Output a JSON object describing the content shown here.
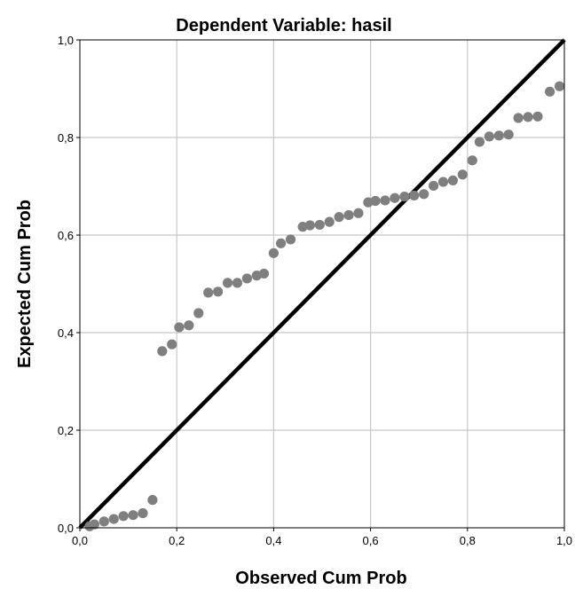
{
  "chart_data": {
    "type": "scatter",
    "title": "Dependent Variable: hasil",
    "xlabel": "Observed Cum Prob",
    "ylabel": "Expected Cum Prob",
    "xlim": [
      0,
      1
    ],
    "ylim": [
      0,
      1
    ],
    "x_ticks": [
      "0,0",
      "0,2",
      "0,4",
      "0,6",
      "0,8",
      "1,0"
    ],
    "y_ticks": [
      "0,0",
      "0,2",
      "0,4",
      "0,6",
      "0,8",
      "1,0"
    ],
    "grid": true,
    "reference_line": [
      [
        0,
        0
      ],
      [
        1,
        1
      ]
    ],
    "colors": {
      "points": "#7f7f7f",
      "line": "#000000",
      "grid": "#c8c8c8"
    },
    "points": [
      [
        0.02,
        0.003
      ],
      [
        0.03,
        0.007
      ],
      [
        0.05,
        0.013
      ],
      [
        0.07,
        0.018
      ],
      [
        0.09,
        0.024
      ],
      [
        0.11,
        0.026
      ],
      [
        0.13,
        0.03
      ],
      [
        0.15,
        0.057
      ],
      [
        0.17,
        0.362
      ],
      [
        0.19,
        0.376
      ],
      [
        0.205,
        0.411
      ],
      [
        0.225,
        0.415
      ],
      [
        0.245,
        0.44
      ],
      [
        0.265,
        0.482
      ],
      [
        0.285,
        0.484
      ],
      [
        0.305,
        0.502
      ],
      [
        0.325,
        0.502
      ],
      [
        0.345,
        0.511
      ],
      [
        0.365,
        0.517
      ],
      [
        0.38,
        0.521
      ],
      [
        0.4,
        0.563
      ],
      [
        0.415,
        0.583
      ],
      [
        0.435,
        0.591
      ],
      [
        0.46,
        0.617
      ],
      [
        0.475,
        0.62
      ],
      [
        0.495,
        0.621
      ],
      [
        0.515,
        0.627
      ],
      [
        0.535,
        0.637
      ],
      [
        0.555,
        0.641
      ],
      [
        0.575,
        0.645
      ],
      [
        0.595,
        0.667
      ],
      [
        0.61,
        0.67
      ],
      [
        0.63,
        0.671
      ],
      [
        0.65,
        0.676
      ],
      [
        0.67,
        0.679
      ],
      [
        0.69,
        0.681
      ],
      [
        0.71,
        0.684
      ],
      [
        0.73,
        0.701
      ],
      [
        0.75,
        0.709
      ],
      [
        0.77,
        0.712
      ],
      [
        0.79,
        0.724
      ],
      [
        0.81,
        0.753
      ],
      [
        0.825,
        0.791
      ],
      [
        0.845,
        0.802
      ],
      [
        0.865,
        0.804
      ],
      [
        0.885,
        0.806
      ],
      [
        0.905,
        0.84
      ],
      [
        0.925,
        0.842
      ],
      [
        0.945,
        0.843
      ],
      [
        0.97,
        0.894
      ],
      [
        0.99,
        0.905
      ]
    ]
  }
}
